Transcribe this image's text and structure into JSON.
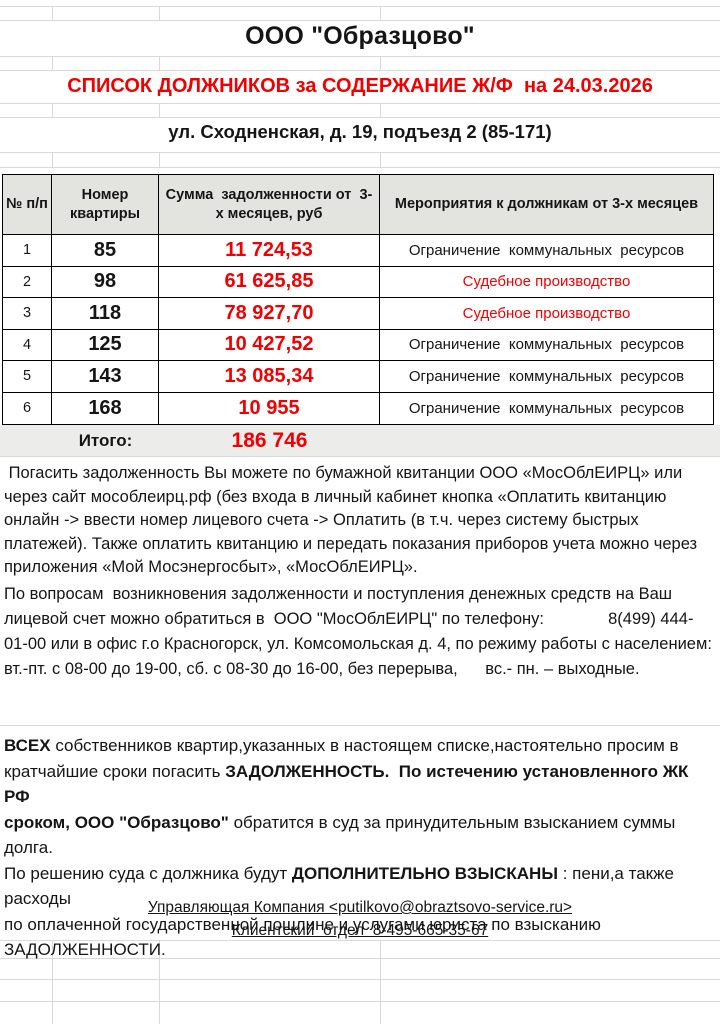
{
  "page": {
    "company_title": "ООО \"Образцово\"",
    "list_title": "СПИСОК ДОЛЖНИКОВ за СОДЕРЖАНИЕ Ж/Ф  на 24.03.2026",
    "address": "ул. Сходненская, д. 19, подъезд 2 (85-171)"
  },
  "colors": {
    "accent_red": "#f00000",
    "header_bg": "#e3e3e0",
    "total_bg": "#ececea",
    "grid": "#d9d9d9",
    "border_black": "#000000",
    "text": "#151515"
  },
  "table": {
    "headers": {
      "num": "№ п/п",
      "apartment": "Номер\nквартиры",
      "amount": "Сумма  задолженности от  3-\nх месяцев, руб",
      "actions": "Мероприятия к должникам от 3-х месяцев"
    },
    "rows": [
      {
        "num": "1",
        "apartment": "85",
        "amount": "11 724,53",
        "action": "Ограничение  коммунальных  ресурсов",
        "action_style": "normal"
      },
      {
        "num": "2",
        "apartment": "98",
        "amount": "61 625,85",
        "action": "Судебное производство",
        "action_style": "red"
      },
      {
        "num": "3",
        "apartment": "118",
        "amount": "78 927,70",
        "action": "Судебное производство",
        "action_style": "red"
      },
      {
        "num": "4",
        "apartment": "125",
        "amount": "10 427,52",
        "action": "Ограничение  коммунальных  ресурсов",
        "action_style": "normal"
      },
      {
        "num": "5",
        "apartment": "143",
        "amount": "13 085,34",
        "action": "Ограничение  коммунальных  ресурсов",
        "action_style": "normal"
      },
      {
        "num": "6",
        "apartment": "168",
        "amount": "10 955",
        "action": "Ограничение  коммунальных  ресурсов",
        "action_style": "normal"
      }
    ],
    "total": {
      "label": "Итого:",
      "amount": "186 746"
    }
  },
  "paragraphs": {
    "payment_info": " Погасить задолженность Вы можете по бумажной квитанции ООО «МосОблЕИРЦ» или\nчерез сайт мособлеирц.рф (без входа в личный кабинет кнопка «Оплатить квитанцию\nонлайн -> ввести номер лицевого счета -> Оплатить (в т.ч. через систему быстрых\nплатежей). Также оплатить квитанцию и передать показания приборов учета можно через\nприложения «Мой Мосэнергосбыт», «МосОблЕИРЦ».",
    "contact_info": "По вопросам  возникновения задолженности и поступления денежных средств на Ваш\nлицевой счет можно обратиться в  ООО \"МосОблЕИРЦ\" по телефону:              8(499) 444-\n01-00 или в офис г.о Красногорск, ул. Комсомольская д. 4, по режиму работы с населением:\nвт.-пт. с 08-00 до 19-00, сб. с 08-30 до 16-00, без перерыва,      вс.- пн. – выходные.",
    "warning_segments": [
      {
        "t": "ВСЕХ",
        "b": true
      },
      {
        "t": " собственников квартир,указанных в настоящем списке,настоятельно просим в\nкратчайшие сроки погасить ",
        "b": false
      },
      {
        "t": "ЗАДОЛЖЕННОСТЬ.",
        "b": true
      },
      {
        "t": "  ",
        "b": false
      },
      {
        "t": "По истечению установленного ЖК РФ\nсроком, ООО \"Образцово\"",
        "b": true
      },
      {
        "t": " обратится в суд за принудительным взысканием суммы долга.\nПо решению суда с должника будут ",
        "b": false
      },
      {
        "t": "ДОПОЛНИТЕЛЬНО ВЗЫСКАНЫ",
        "b": true
      },
      {
        "t": " : пени,а также расходы\nпо оплаченной государственной пошлине и услугами юриста по взысканию\nЗАДОЛЖЕННОСТИ.",
        "b": false
      }
    ]
  },
  "footer": {
    "company_line": "Управляющая Компания <putilkovo@obraztsovo-service.ru>",
    "client_line": "Клиентский  отдел  8-495-665-35-67"
  }
}
